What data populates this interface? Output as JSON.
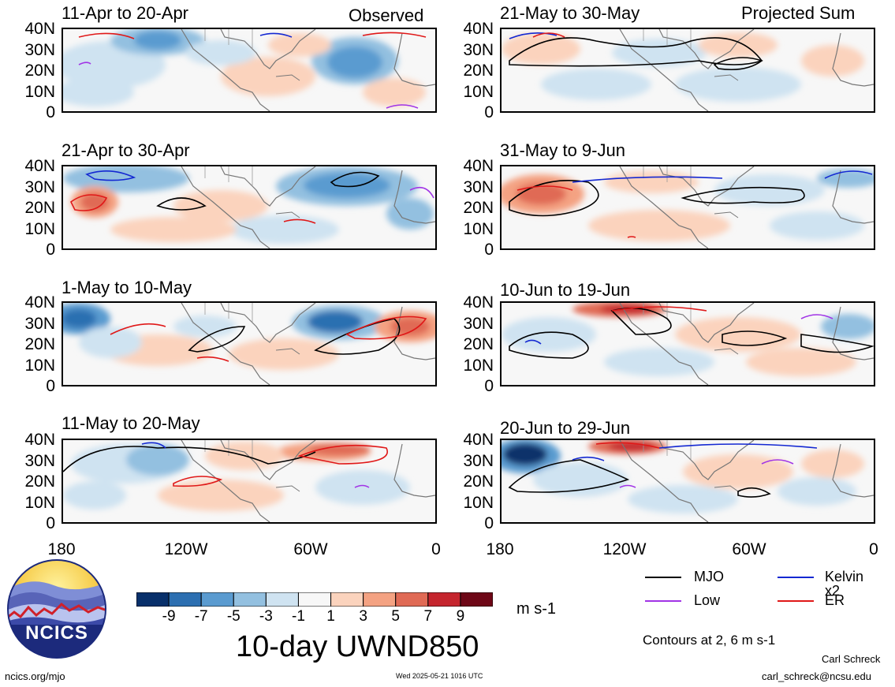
{
  "labels": {
    "observed": "Observed",
    "projected": "Projected Sum"
  },
  "panels": [
    {
      "period": "11-Apr to 20-Apr",
      "column": "observed"
    },
    {
      "period": "21-Apr to 30-Apr",
      "column": "observed"
    },
    {
      "period": "1-May to 10-May",
      "column": "observed"
    },
    {
      "period": "11-May to 20-May",
      "column": "observed"
    },
    {
      "period": "21-May to 30-May",
      "column": "projected"
    },
    {
      "period": "31-May to 9-Jun",
      "column": "projected"
    },
    {
      "period": "10-Jun to 19-Jun",
      "column": "projected"
    },
    {
      "period": "20-Jun to 29-Jun",
      "column": "projected"
    }
  ],
  "y_ticks": [
    "40N",
    "30N",
    "20N",
    "10N",
    "0"
  ],
  "x_ticks": [
    "180",
    "120W",
    "60W",
    "0"
  ],
  "colorbar": {
    "ticks": [
      "-9",
      "-7",
      "-5",
      "-3",
      "-1",
      "1",
      "3",
      "5",
      "7",
      "9"
    ],
    "colors": [
      "#08306b",
      "#2c6fb1",
      "#5a9bd0",
      "#93c0e0",
      "#cfe3f1",
      "#f7f7f7",
      "#fbd3bd",
      "#f4a282",
      "#e06a55",
      "#c5252e",
      "#6e0717"
    ],
    "units": "m s-1"
  },
  "title": "10-day UWND850",
  "legend": {
    "items": [
      {
        "label": "MJO",
        "color": "#000000"
      },
      {
        "label": "Kelvin x2",
        "color": "#1428d2"
      },
      {
        "label": "Low",
        "color": "#a134e6"
      },
      {
        "label": "ER",
        "color": "#e01818"
      }
    ],
    "contours_note": "Contours at 2, 6 m s-1"
  },
  "logo": {
    "text": "NCICS"
  },
  "footer": {
    "left": "ncics.org/mjo",
    "timestamp": "Wed 2025-05-21 1016 UTC",
    "author": "Carl Schreck",
    "email": "carl_schreck@ncsu.edu"
  }
}
